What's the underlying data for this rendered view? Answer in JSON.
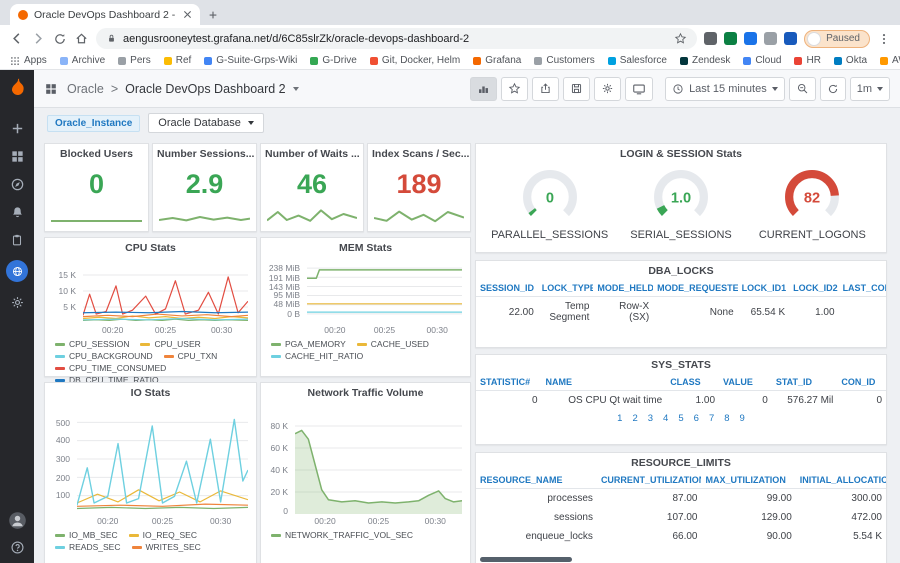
{
  "browser": {
    "tab_title": "Oracle DevOps Dashboard 2 -",
    "url": "aengusrooneytest.grafana.net/d/6C85slrZk/oracle-devops-dashboard-2",
    "paused_label": "Paused",
    "bookmarks": [
      {
        "label": "Apps",
        "color": "#5f6368"
      },
      {
        "label": "Archive",
        "color": "#8ab4f8"
      },
      {
        "label": "Pers",
        "color": "#9aa0a6"
      },
      {
        "label": "Ref",
        "color": "#fbbc04"
      },
      {
        "label": "G-Suite-Grps-Wiki",
        "color": "#4285f4"
      },
      {
        "label": "G-Drive",
        "color": "#34a853"
      },
      {
        "label": "Git, Docker, Helm",
        "color": "#f05033"
      },
      {
        "label": "Grafana",
        "color": "#f46800"
      },
      {
        "label": "Customers",
        "color": "#9aa0a6"
      },
      {
        "label": "Salesforce",
        "color": "#00a1e0"
      },
      {
        "label": "Zendesk",
        "color": "#03363d"
      },
      {
        "label": "Cloud",
        "color": "#4285f4"
      },
      {
        "label": "HR",
        "color": "#ea4335"
      },
      {
        "label": "Okta",
        "color": "#007dc1"
      },
      {
        "label": "AWS Login",
        "color": "#ff9900"
      }
    ],
    "extensions": [
      {
        "color": "#5f6368"
      },
      {
        "color": "#0b8043"
      },
      {
        "color": "#1a73e8"
      },
      {
        "color": "#9aa0a6"
      },
      {
        "color": "#185abc"
      }
    ]
  },
  "grafana": {
    "breadcrumb": {
      "folder": "Oracle",
      "separator": ">",
      "title": "Oracle DevOps Dashboard 2"
    },
    "toolbar": {
      "time_range": "Last 15 minutes",
      "refresh": "1m"
    },
    "submenu": {
      "variable_tag": "Oracle_Instance",
      "database_dropdown": "Oracle Database"
    }
  },
  "panels": {
    "stats": [
      {
        "title": "Blocked Users",
        "value": "0",
        "color": "#3aa655",
        "spark": {
          "series": [
            {
              "color": "#7eb26d",
              "width": 2,
              "points": [
                [
                  0,
                  75
                ],
                [
                  100,
                  75
                ]
              ]
            }
          ]
        }
      },
      {
        "title": "Number Sessions...",
        "value": "2.9",
        "color": "#3aa655",
        "spark": {
          "series": [
            {
              "color": "#7eb26d",
              "width": 2,
              "points": [
                [
                  0,
                  70
                ],
                [
                  15,
                  60
                ],
                [
                  30,
                  72
                ],
                [
                  45,
                  55
                ],
                [
                  60,
                  68
                ],
                [
                  75,
                  58
                ],
                [
                  90,
                  70
                ],
                [
                  100,
                  63
                ]
              ]
            }
          ]
        }
      },
      {
        "title": "Number of Waits ...",
        "value": "46",
        "color": "#3aa655",
        "spark": {
          "series": [
            {
              "color": "#7eb26d",
              "width": 2,
              "points": [
                [
                  0,
                  72
                ],
                [
                  12,
                  30
                ],
                [
                  22,
                  70
                ],
                [
                  35,
                  48
                ],
                [
                  48,
                  74
                ],
                [
                  60,
                  22
                ],
                [
                  72,
                  66
                ],
                [
                  85,
                  40
                ],
                [
                  100,
                  60
                ]
              ]
            }
          ]
        }
      },
      {
        "title": "Index Scans / Sec...",
        "value": "189",
        "color": "#d44a3a",
        "spark": {
          "series": [
            {
              "color": "#7eb26d",
              "width": 2,
              "points": [
                [
                  0,
                  60
                ],
                [
                  14,
                  74
                ],
                [
                  28,
                  28
                ],
                [
                  42,
                  68
                ],
                [
                  55,
                  44
                ],
                [
                  68,
                  76
                ],
                [
                  82,
                  30
                ],
                [
                  100,
                  58
                ]
              ]
            }
          ]
        }
      }
    ],
    "login": {
      "title": "LOGIN & SESSION Stats",
      "gauges": [
        {
          "label": "PARALLEL_SESSIONS",
          "value": "0",
          "color": "#3aa655",
          "fraction": 0.03
        },
        {
          "label": "SERIAL_SESSIONS",
          "value": "1.0",
          "color": "#3aa655",
          "fraction": 0.07
        },
        {
          "label": "CURRENT_LOGONS",
          "value": "82",
          "color": "#d44a3a",
          "fraction": 0.82
        }
      ]
    },
    "cpu": {
      "title": "CPU Stats",
      "yticks": [
        "15 K",
        "10 K",
        "5 K"
      ],
      "xticks": [
        "00:20",
        "00:25",
        "00:30"
      ],
      "chart": {
        "gridcount": 3,
        "series": [
          {
            "name": "CPU_SESSION",
            "color": "#7eb26d",
            "points": [
              [
                0,
                96
              ],
              [
                8,
                95
              ],
              [
                16,
                96
              ],
              [
                24,
                94
              ],
              [
                32,
                96
              ],
              [
                40,
                95
              ],
              [
                48,
                96
              ],
              [
                56,
                94
              ],
              [
                64,
                96
              ],
              [
                72,
                95
              ],
              [
                80,
                96
              ],
              [
                88,
                95
              ],
              [
                100,
                96
              ]
            ]
          },
          {
            "name": "CPU_USER",
            "color": "#eab839",
            "points": [
              [
                0,
                93
              ],
              [
                10,
                91
              ],
              [
                20,
                93
              ],
              [
                30,
                89
              ],
              [
                40,
                92
              ],
              [
                50,
                90
              ],
              [
                60,
                93
              ],
              [
                70,
                91
              ],
              [
                80,
                93
              ],
              [
                90,
                90
              ],
              [
                100,
                92
              ]
            ]
          },
          {
            "name": "CPU_BACKGROUND",
            "color": "#6ed0e0",
            "points": [
              [
                0,
                95
              ],
              [
                20,
                94
              ],
              [
                40,
                95
              ],
              [
                60,
                93
              ],
              [
                80,
                95
              ],
              [
                100,
                94
              ]
            ]
          },
          {
            "name": "CPU_TXN",
            "color": "#ef843c",
            "points": [
              [
                0,
                90
              ],
              [
                15,
                88
              ],
              [
                30,
                90
              ],
              [
                45,
                86
              ],
              [
                60,
                89
              ],
              [
                75,
                87
              ],
              [
                90,
                90
              ],
              [
                100,
                88
              ]
            ]
          },
          {
            "name": "CPU_TIME_CONSUMED",
            "color": "#e24d42",
            "points": [
              [
                0,
                88
              ],
              [
                4,
                55
              ],
              [
                8,
                86
              ],
              [
                14,
                82
              ],
              [
                20,
                42
              ],
              [
                24,
                86
              ],
              [
                30,
                80
              ],
              [
                38,
                58
              ],
              [
                44,
                86
              ],
              [
                50,
                78
              ],
              [
                56,
                34
              ],
              [
                62,
                86
              ],
              [
                70,
                80
              ],
              [
                76,
                52
              ],
              [
                82,
                86
              ],
              [
                88,
                28
              ],
              [
                94,
                84
              ],
              [
                100,
                66
              ]
            ]
          },
          {
            "name": "DB_CPU_TIME_RATIO",
            "color": "#1f78c1",
            "points": [
              [
                0,
                84
              ],
              [
                20,
                83
              ],
              [
                40,
                84
              ],
              [
                60,
                82
              ],
              [
                80,
                84
              ],
              [
                100,
                83
              ]
            ]
          }
        ]
      }
    },
    "mem": {
      "title": "MEM Stats",
      "yticks": [
        "238 MiB",
        "191 MiB",
        "143 MiB",
        "95 MiB",
        "48 MiB",
        "0 B"
      ],
      "xticks": [
        "00:20",
        "00:25",
        "00:30"
      ],
      "chart": {
        "gridcount": 6,
        "series": [
          {
            "name": "PGA_MEMORY",
            "color": "#7eb26d",
            "width": 1.5,
            "points": [
              [
                0,
                30
              ],
              [
                6,
                30
              ],
              [
                8,
                17
              ],
              [
                100,
                17
              ]
            ]
          },
          {
            "name": "CACHE_USED",
            "color": "#eab839",
            "points": [
              [
                0,
                70
              ],
              [
                100,
                70
              ]
            ]
          },
          {
            "name": "CACHE_HIT_RATIO",
            "color": "#6ed0e0",
            "points": [
              [
                0,
                83
              ],
              [
                100,
                83
              ]
            ]
          }
        ]
      }
    },
    "io": {
      "title": "IO Stats",
      "yticks": [
        "500",
        "400",
        "300",
        "200",
        "100"
      ],
      "xticks": [
        "00:20",
        "00:25",
        "00:30"
      ],
      "chart": {
        "gridcount": 5,
        "series": [
          {
            "name": "IO_MB_SEC",
            "color": "#7eb26d",
            "points": [
              [
                0,
                95
              ],
              [
                20,
                94
              ],
              [
                40,
                95
              ],
              [
                60,
                94
              ],
              [
                80,
                95
              ],
              [
                100,
                94
              ]
            ]
          },
          {
            "name": "IO_REQ_SEC",
            "color": "#eab839",
            "points": [
              [
                0,
                90
              ],
              [
                12,
                82
              ],
              [
                24,
                89
              ],
              [
                36,
                78
              ],
              [
                48,
                88
              ],
              [
                60,
                80
              ],
              [
                72,
                89
              ],
              [
                84,
                79
              ],
              [
                100,
                87
              ]
            ]
          },
          {
            "name": "READS_SEC",
            "color": "#6ed0e0",
            "width": 1.4,
            "points": [
              [
                0,
                92
              ],
              [
                6,
                58
              ],
              [
                10,
                90
              ],
              [
                18,
                84
              ],
              [
                24,
                36
              ],
              [
                29,
                90
              ],
              [
                36,
                86
              ],
              [
                44,
                20
              ],
              [
                50,
                90
              ],
              [
                57,
                84
              ],
              [
                64,
                52
              ],
              [
                70,
                90
              ],
              [
                78,
                32
              ],
              [
                84,
                89
              ],
              [
                92,
                14
              ],
              [
                97,
                70
              ],
              [
                100,
                60
              ]
            ]
          },
          {
            "name": "WRITES_SEC",
            "color": "#ef843c",
            "points": [
              [
                0,
                93
              ],
              [
                25,
                92
              ],
              [
                50,
                93
              ],
              [
                75,
                91
              ],
              [
                100,
                92
              ]
            ]
          }
        ]
      }
    },
    "net": {
      "title": "Network Traffic Volume",
      "yticks": [
        "80 K",
        "60 K",
        "40 K",
        "20 K",
        "0"
      ],
      "xticks": [
        "00:20",
        "00:25",
        "00:30"
      ],
      "chart": {
        "gridcount": 4,
        "series": [
          {
            "name": "NETWORK_TRAFFIC_VOL_SEC",
            "color": "#7eb26d",
            "width": 1.5,
            "fill": "rgba(126,178,109,0.25)",
            "points": [
              [
                0,
                27
              ],
              [
                4,
                24
              ],
              [
                8,
                32
              ],
              [
                12,
                55
              ],
              [
                16,
                78
              ],
              [
                20,
                87
              ],
              [
                28,
                89
              ],
              [
                36,
                88
              ],
              [
                44,
                90
              ],
              [
                52,
                89
              ],
              [
                60,
                90
              ],
              [
                68,
                89
              ],
              [
                74,
                88
              ],
              [
                80,
                83
              ],
              [
                86,
                79
              ],
              [
                90,
                86
              ],
              [
                95,
                89
              ],
              [
                100,
                88
              ]
            ]
          }
        ]
      }
    },
    "dba_locks": {
      "title": "DBA_LOCKS",
      "headers": [
        "SESSION_ID",
        "LOCK_TYPE",
        "MODE_HELD",
        "MODE_REQUESTED",
        "LOCK_ID1",
        "LOCK_ID2",
        "LAST_CON..."
      ],
      "rows": [
        [
          "22.00",
          "Temp Segment",
          "Row-X (SX)",
          "None",
          "65.54 K",
          "1.00",
          ""
        ]
      ]
    },
    "sys_stats": {
      "title": "SYS_STATS",
      "headers": [
        "STATISTIC#",
        "NAME",
        "CLASS",
        "VALUE",
        "STAT_ID",
        "CON_ID"
      ],
      "rows": [
        [
          "0",
          "OS CPU Qt wait time",
          "1.00",
          "0",
          "576.27 Mil",
          "0"
        ]
      ],
      "pages": [
        "1",
        "2",
        "3",
        "4",
        "5",
        "6",
        "7",
        "8",
        "9"
      ]
    },
    "resource_limits": {
      "title": "RESOURCE_LIMITS",
      "headers": [
        "RESOURCE_NAME",
        "CURRENT_UTILIZATION",
        "MAX_UTILIZATION",
        "INITIAL_ALLOCATION"
      ],
      "rows": [
        [
          "processes",
          "87.00",
          "99.00",
          "300.00"
        ],
        [
          "sessions",
          "107.00",
          "129.00",
          "472.00"
        ],
        [
          "enqueue_locks",
          "66.00",
          "90.00",
          "5.54 K"
        ]
      ]
    }
  }
}
